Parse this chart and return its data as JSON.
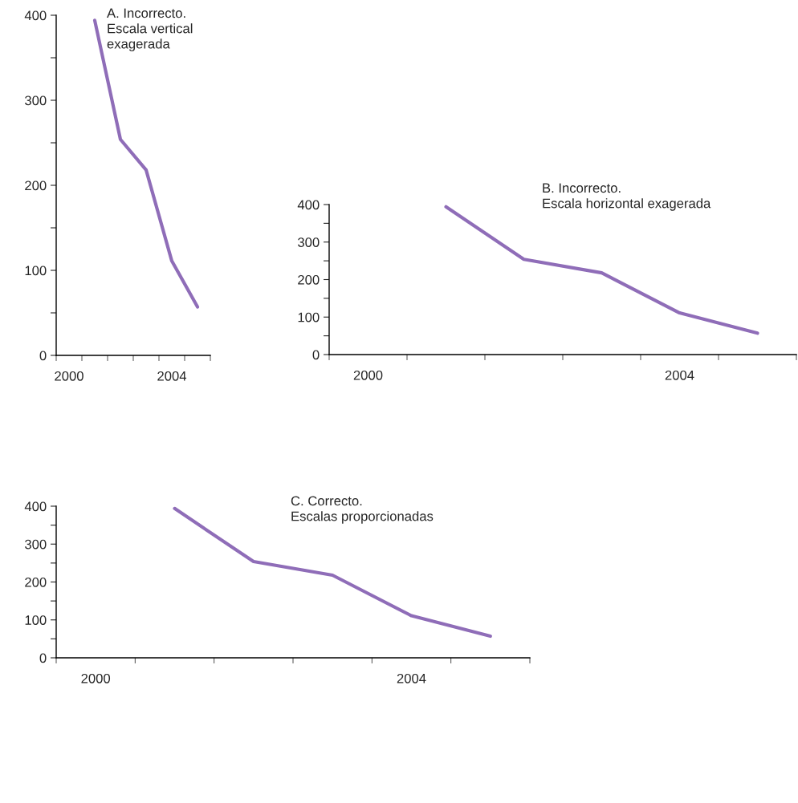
{
  "chart_data": [
    {
      "type": "line",
      "title": "A. Incorrecto.\nEscala vertical\nexagerada",
      "categories": [
        "2000",
        null,
        null,
        null,
        "2004",
        null
      ],
      "series": [
        {
          "color": "#8f6db8",
          "values": [
            null,
            394,
            254,
            218,
            111,
            57
          ]
        }
      ],
      "ylim": [
        0,
        400
      ],
      "yticks": [
        0,
        {
          "value": 50,
          "label": null
        },
        100,
        {
          "value": 150,
          "label": null
        },
        200,
        {
          "value": 250,
          "label": null
        },
        300,
        {
          "value": 350,
          "label": null
        },
        400
      ],
      "grid": false,
      "legend": false
    },
    {
      "type": "line",
      "title": "B. Incorrecto.\nEscala horizontal exagerada",
      "categories": [
        "2000",
        null,
        null,
        null,
        "2004",
        null
      ],
      "series": [
        {
          "color": "#8f6db8",
          "values": [
            null,
            394,
            254,
            218,
            111,
            57
          ]
        }
      ],
      "ylim": [
        0,
        400
      ],
      "yticks": [
        0,
        {
          "value": 50,
          "label": null
        },
        100,
        {
          "value": 150,
          "label": null
        },
        200,
        {
          "value": 250,
          "label": null
        },
        300,
        {
          "value": 350,
          "label": null
        },
        400
      ],
      "grid": false,
      "legend": false
    },
    {
      "type": "line",
      "title": "C. Correcto.\nEscalas proporcionadas",
      "categories": [
        "2000",
        null,
        null,
        null,
        "2004",
        null
      ],
      "series": [
        {
          "color": "#8f6db8",
          "values": [
            null,
            394,
            254,
            218,
            111,
            57
          ]
        }
      ],
      "ylim": [
        0,
        400
      ],
      "yticks": [
        0,
        {
          "value": 50,
          "label": null
        },
        100,
        {
          "value": 150,
          "label": null
        },
        200,
        {
          "value": 250,
          "label": null
        },
        300,
        {
          "value": 350,
          "label": null
        },
        400
      ],
      "grid": false,
      "legend": false
    }
  ]
}
